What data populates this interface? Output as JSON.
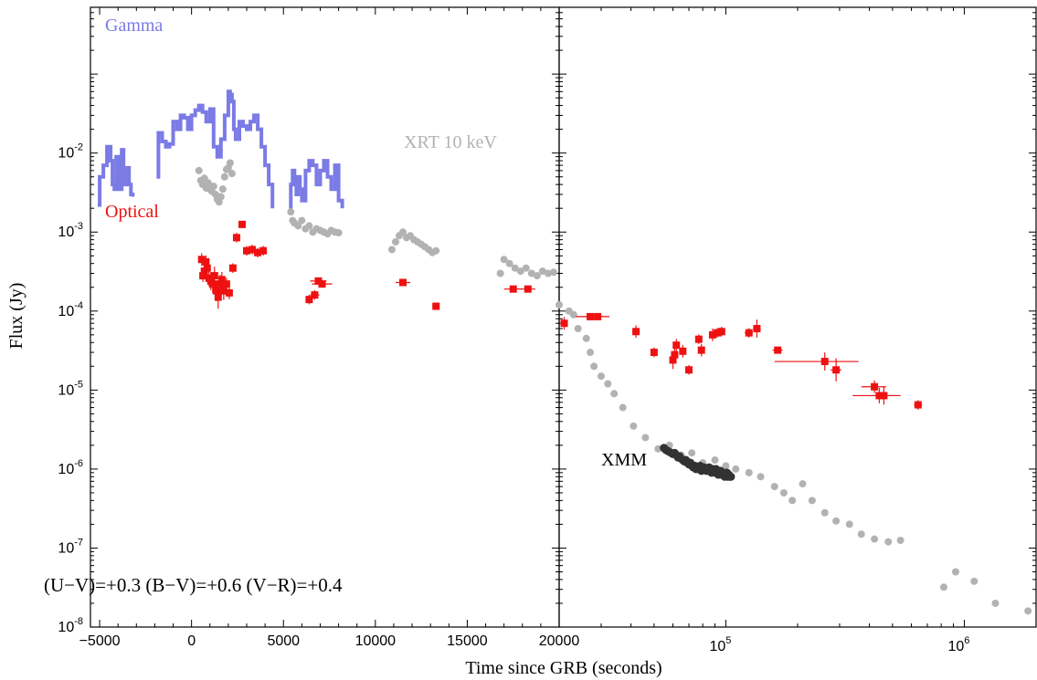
{
  "chart_data": {
    "type": "scatter",
    "xlabel": "Time since GRB (seconds)",
    "ylabel": "Flux (Jy)",
    "y_scale": "log",
    "ylim": [
      1e-08,
      0.7
    ],
    "y_tick_labels": [
      "10^-8",
      "10^-7",
      "10^-6",
      "10^-5",
      "10^-4",
      "10^-3",
      "10^-2"
    ],
    "panels": [
      {
        "name": "left",
        "x_scale": "linear",
        "xlim": [
          -5500,
          20000
        ],
        "x_tick_labels": [
          "−5000",
          "0",
          "5000",
          "10000",
          "15000",
          "20000"
        ]
      },
      {
        "name": "right",
        "x_scale": "log",
        "xlim": [
          20000,
          2000000
        ],
        "x_tick_labels": [
          "20000",
          "10^5",
          "10^6"
        ]
      }
    ],
    "annotation": "(U−V)=+0.3 (B−V)=+0.6 (V−R)=+0.4",
    "series": [
      {
        "name": "Gamma",
        "color": "#7b7be6",
        "style": "step",
        "x": [
          -5100,
          -5000,
          -4800,
          -4600,
          -4400,
          -4300,
          -4200,
          -4100,
          -4000,
          -3900,
          -3800,
          -3700,
          -3600,
          -3500,
          -3400,
          -3300,
          -3200,
          null,
          -1900,
          -1800,
          -1600,
          -1400,
          -1200,
          -1000,
          -800,
          -600,
          -400,
          -200,
          0,
          200,
          400,
          600,
          800,
          1000,
          1200,
          1400,
          1600,
          1800,
          2000,
          2100,
          2200,
          2300,
          2400,
          2600,
          2800,
          3000,
          3200,
          3400,
          3600,
          3800,
          4000,
          4200,
          4400,
          null,
          5300,
          5400,
          5500,
          5600,
          5700,
          5800,
          5900,
          6000,
          6200,
          6400,
          6600,
          6800,
          7000,
          7200,
          7400,
          7600,
          7800,
          8000,
          8200
        ],
        "y": [
          0.0022,
          0.005,
          0.007,
          0.012,
          0.008,
          0.004,
          0.0035,
          0.009,
          0.005,
          0.0035,
          0.011,
          0.004,
          0.0045,
          0.0065,
          0.004,
          0.003,
          0.0028,
          null,
          0.005,
          0.018,
          0.014,
          0.012,
          0.013,
          0.025,
          0.02,
          0.03,
          0.028,
          0.02,
          0.03,
          0.035,
          0.04,
          0.033,
          0.025,
          0.036,
          0.012,
          0.009,
          0.015,
          0.03,
          0.06,
          0.055,
          0.045,
          0.02,
          0.015,
          0.025,
          0.022,
          0.02,
          0.025,
          0.03,
          0.02,
          0.012,
          0.007,
          0.004,
          0.002,
          null,
          0.002,
          0.004,
          0.006,
          0.0045,
          0.003,
          0.005,
          0.0035,
          0.0025,
          0.006,
          0.008,
          0.007,
          0.004,
          0.006,
          0.008,
          0.005,
          0.0035,
          0.007,
          0.0025,
          0.002
        ]
      },
      {
        "name": "XRT 10 keV",
        "color": "#b2b2b2",
        "style": "points",
        "x": [
          400,
          500,
          600,
          700,
          800,
          900,
          1000,
          1100,
          1200,
          1300,
          1400,
          1500,
          1600,
          1700,
          1800,
          1900,
          2000,
          2100,
          2200,
          5400,
          5500,
          5600,
          5800,
          6000,
          6200,
          6400,
          6600,
          6800,
          7000,
          7200,
          7400,
          7600,
          7800,
          8000,
          10900,
          11100,
          11300,
          11500,
          11700,
          11900,
          12100,
          12300,
          12500,
          12700,
          12900,
          13100,
          13300,
          16800,
          17000,
          17300,
          17600,
          17900,
          18200,
          18500,
          18800,
          19100,
          19400,
          19700,
          20000,
          22000,
          23000,
          24000,
          26000,
          27000,
          28000,
          30000,
          32000,
          34000,
          37000,
          41000,
          46000,
          52000,
          58000,
          65000,
          72000,
          80000,
          90000,
          100000,
          110000,
          125000,
          140000,
          160000,
          175000,
          190000,
          210000,
          230000,
          260000,
          290000,
          330000,
          370000,
          420000,
          480000,
          540000,
          820000,
          920000,
          1100000,
          1350000,
          1850000
        ],
        "y": [
          0.006,
          0.0045,
          0.004,
          0.0048,
          0.0036,
          0.0042,
          0.0035,
          0.0033,
          0.0038,
          0.003,
          0.0026,
          0.0024,
          0.0028,
          0.0035,
          0.005,
          0.0062,
          0.0065,
          0.0075,
          0.0055,
          0.0018,
          0.0014,
          0.0013,
          0.0012,
          0.0014,
          0.0011,
          0.0012,
          0.001,
          0.0011,
          0.00105,
          0.001,
          0.00095,
          0.00105,
          0.001,
          0.00098,
          0.0006,
          0.00075,
          0.0009,
          0.001,
          0.00085,
          0.0009,
          0.0008,
          0.00075,
          0.0007,
          0.00065,
          0.0006,
          0.00055,
          0.00058,
          0.0003,
          0.00045,
          0.0004,
          0.00035,
          0.00032,
          0.00035,
          0.0003,
          0.00028,
          0.00032,
          0.0003,
          0.00031,
          0.00012,
          0.0001,
          9e-05,
          6e-05,
          4.5e-05,
          3e-05,
          2e-05,
          1.5e-05,
          1.2e-05,
          9e-06,
          6e-06,
          3.5e-06,
          2.5e-06,
          1.8e-06,
          2e-06,
          1.5e-06,
          1.6e-06,
          1.2e-06,
          1.3e-06,
          1.1e-06,
          1e-06,
          9e-07,
          8e-07,
          6e-07,
          5e-07,
          4e-07,
          6.5e-07,
          4e-07,
          2.8e-07,
          2.2e-07,
          2e-07,
          1.5e-07,
          1.3e-07,
          1.2e-07,
          1.25e-07,
          3.2e-08,
          5e-08,
          3.8e-08,
          2e-08,
          1.6e-08
        ]
      },
      {
        "name": "Optical",
        "color": "#ee1111",
        "style": "errorbar",
        "x": [
          550,
          620,
          700,
          780,
          850,
          950,
          1050,
          1150,
          1250,
          1350,
          1450,
          1550,
          1650,
          1750,
          1900,
          2050,
          2250,
          2450,
          2750,
          3000,
          3300,
          3600,
          3900,
          6400,
          6700,
          6900,
          7100,
          11500,
          13300,
          17500,
          18300,
          21000,
          27000,
          29000,
          42000,
          50000,
          60000,
          61000,
          62000,
          66000,
          70000,
          77000,
          79000,
          88000,
          92000,
          96000,
          125000,
          135000,
          165000,
          260000,
          290000,
          420000,
          440000,
          460000,
          640000
        ],
        "y": [
          0.00045,
          0.00028,
          0.00032,
          0.00042,
          0.00035,
          0.00026,
          0.00024,
          0.00022,
          0.00028,
          0.00018,
          0.00015,
          0.00022,
          0.00025,
          0.00018,
          0.00022,
          0.00017,
          0.00035,
          0.00085,
          0.00125,
          0.00058,
          0.0006,
          0.00055,
          0.00058,
          0.00014,
          0.00016,
          0.00024,
          0.00022,
          0.00023,
          0.000115,
          0.00019,
          0.00019,
          7e-05,
          8.5e-05,
          8.5e-05,
          5.5e-05,
          3e-05,
          2.4e-05,
          2.8e-05,
          3.7e-05,
          3.1e-05,
          1.8e-05,
          4.4e-05,
          3.2e-05,
          5e-05,
          5.3e-05,
          5.5e-05,
          5.3e-05,
          6e-05,
          3.2e-05,
          2.3e-05,
          1.8e-05,
          1.1e-05,
          8.5e-06,
          8.5e-06,
          6.5e-06
        ],
        "x_err": [
          0,
          0,
          0,
          0,
          0,
          0,
          0,
          0,
          0,
          0,
          0,
          0,
          0,
          0,
          0,
          0,
          0,
          0,
          0,
          0,
          0,
          0,
          0,
          200,
          250,
          450,
          550,
          400,
          200,
          500,
          400,
          600,
          3500,
          3500,
          1500,
          1500,
          1500,
          1500,
          1500,
          1500,
          1500,
          1500,
          1500,
          2000,
          2000,
          2000,
          5000,
          5000,
          8000,
          100000,
          15000,
          50000,
          100000,
          50000,
          25000
        ],
        "y_err_frac": [
          0.2,
          0.2,
          0.2,
          0.2,
          0.2,
          0.25,
          0.3,
          0.3,
          0.3,
          0.35,
          0.4,
          0.3,
          0.25,
          0.3,
          0.2,
          0.2,
          0.15,
          0.15,
          0.1,
          0.15,
          0.15,
          0.15,
          0.15,
          0.15,
          0.15,
          0.1,
          0.1,
          0.1,
          0.1,
          0.1,
          0.1,
          0.2,
          0.1,
          0.1,
          0.2,
          0.15,
          0.3,
          0.2,
          0.2,
          0.2,
          0.15,
          0.15,
          0.2,
          0.2,
          0.15,
          0.15,
          0.15,
          0.3,
          0.1,
          0.3,
          0.4,
          0.2,
          0.25,
          0.3,
          0.15
        ]
      },
      {
        "name": "XMM",
        "color": "#333333",
        "style": "points",
        "x": [
          55000,
          56000,
          57000,
          58000,
          59000,
          60000,
          61000,
          62000,
          63000,
          64000,
          65000,
          66000,
          67000,
          68000,
          69000,
          70000,
          71000,
          72000,
          73000,
          74000,
          75000,
          76000,
          77000,
          78000,
          79000,
          80000,
          81000,
          82000,
          83000,
          84000,
          85000,
          86000,
          87000,
          88000,
          89000,
          90000,
          91000,
          92000,
          93000,
          94000,
          95000,
          96000,
          97000,
          98000,
          99000,
          100000,
          101000,
          102000,
          103000,
          104000,
          105000
        ],
        "y": [
          1.85e-06,
          1.75e-06,
          1.7e-06,
          1.65e-06,
          1.6e-06,
          1.55e-06,
          1.6e-06,
          1.5e-06,
          1.4e-06,
          1.45e-06,
          1.35e-06,
          1.3e-06,
          1.25e-06,
          1.3e-06,
          1.2e-06,
          1.15e-06,
          1.2e-06,
          1.1e-06,
          1.05e-06,
          1.1e-06,
          1e-06,
          1.05e-06,
          1e-06,
          1.1e-06,
          9.5e-07,
          1e-06,
          1.05e-06,
          1e-06,
          9.5e-07,
          1e-06,
          1.05e-06,
          9.5e-07,
          9e-07,
          1e-06,
          9.5e-07,
          9e-07,
          1e-06,
          9.5e-07,
          8.5e-07,
          9e-07,
          9.5e-07,
          8.5e-07,
          9e-07,
          8.5e-07,
          8e-07,
          8.5e-07,
          9e-07,
          8e-07,
          8.5e-07,
          8e-07,
          8e-07
        ]
      }
    ]
  }
}
